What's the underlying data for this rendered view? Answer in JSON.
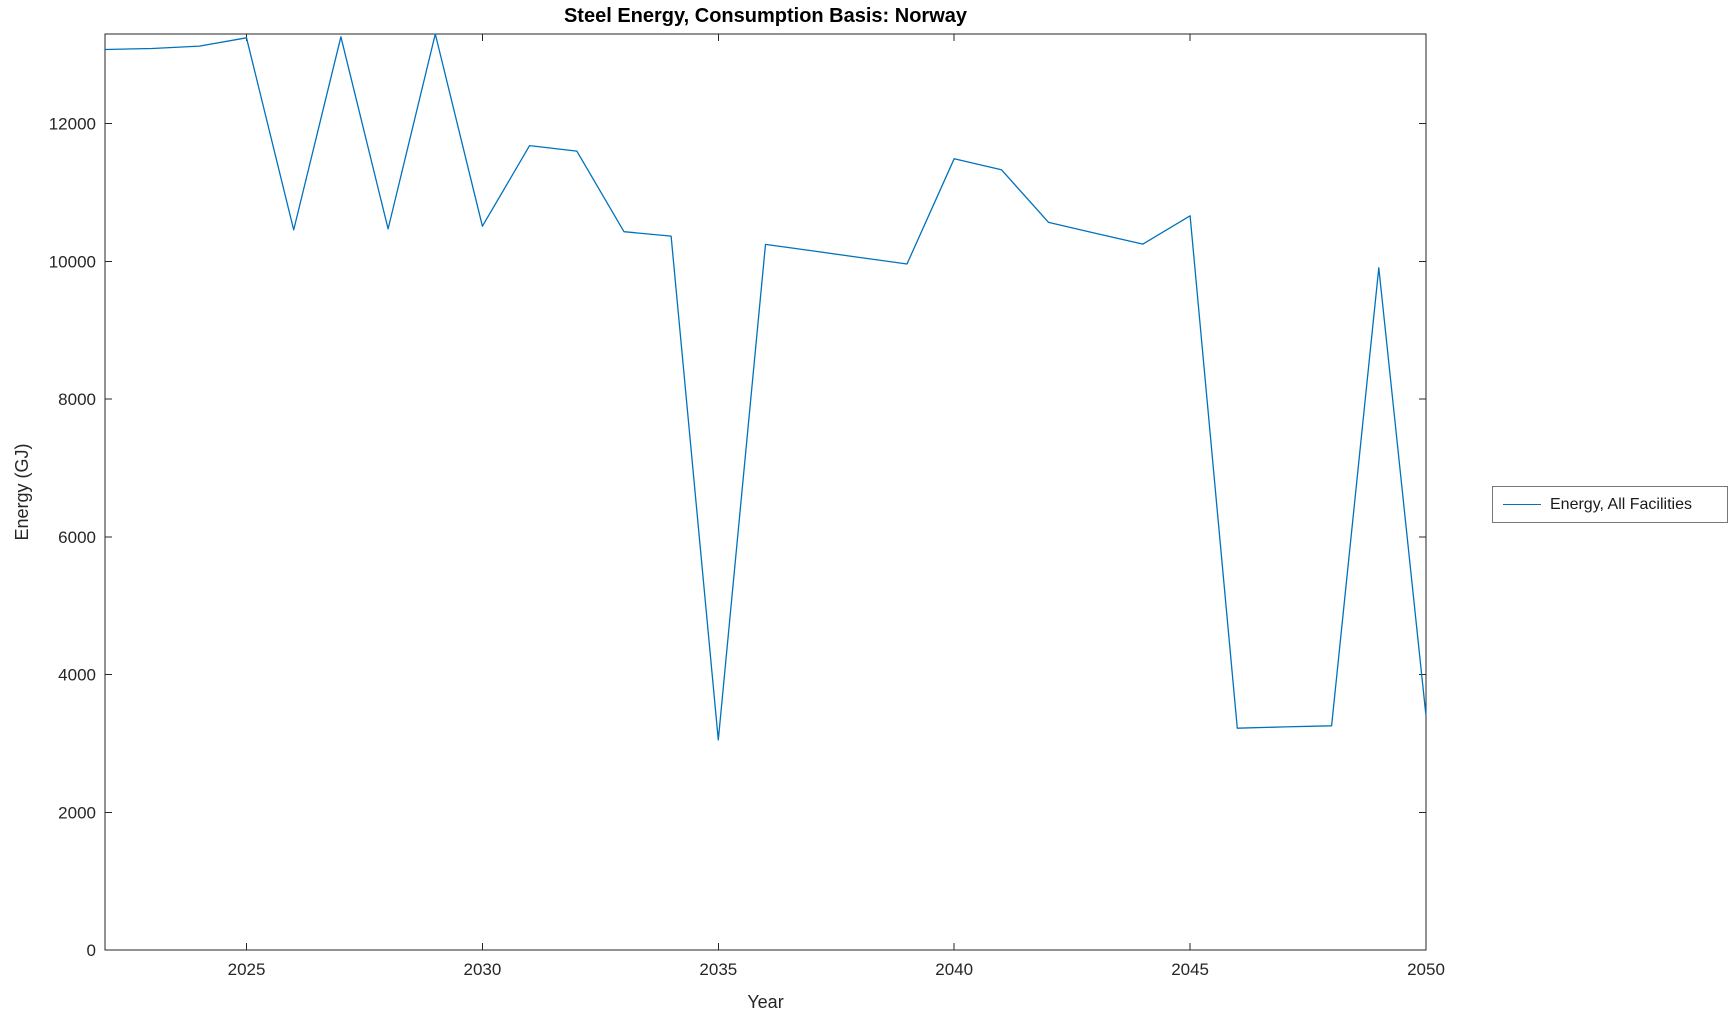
{
  "figure": {
    "background": "#ffffff"
  },
  "chart_data": {
    "type": "line",
    "title": "Steel Energy, Consumption Basis: Norway",
    "xlabel": "Year",
    "ylabel": "Energy (GJ)",
    "xlim": [
      2022,
      2050
    ],
    "ylim": [
      0,
      13300
    ],
    "xticks": [
      2025,
      2030,
      2035,
      2040,
      2045,
      2050
    ],
    "yticks": [
      0,
      2000,
      4000,
      6000,
      8000,
      10000,
      12000
    ],
    "grid": false,
    "legend_position": "outside-right-middle",
    "line_color": "#0072BD",
    "axis_color": "#262626",
    "series": [
      {
        "name": "Energy, All Facilities",
        "x": [
          2022,
          2023,
          2024,
          2025,
          2026,
          2027,
          2028,
          2029,
          2030,
          2031,
          2032,
          2033,
          2034,
          2035,
          2036,
          2037,
          2038,
          2039,
          2040,
          2041,
          2042,
          2043,
          2044,
          2045,
          2046,
          2047,
          2048,
          2049,
          2050
        ],
        "y": [
          13075,
          13090,
          13125,
          13245,
          10455,
          13260,
          10470,
          13300,
          10510,
          11680,
          11600,
          10430,
          10365,
          3050,
          10245,
          10150,
          10055,
          9960,
          11490,
          11330,
          10565,
          10405,
          10250,
          10660,
          3220,
          3240,
          3255,
          9905,
          3400
        ]
      }
    ]
  }
}
